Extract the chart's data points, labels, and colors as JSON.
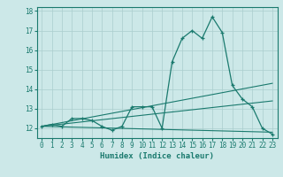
{
  "x": [
    0,
    1,
    2,
    3,
    4,
    5,
    6,
    7,
    8,
    9,
    10,
    11,
    12,
    13,
    14,
    15,
    16,
    17,
    18,
    19,
    20,
    21,
    22,
    23
  ],
  "main_line": [
    12.1,
    12.2,
    12.1,
    12.5,
    12.5,
    12.4,
    12.1,
    11.9,
    12.1,
    13.1,
    13.1,
    13.1,
    12.0,
    15.4,
    16.6,
    17.0,
    16.6,
    17.7,
    16.9,
    14.2,
    13.5,
    13.1,
    12.0,
    11.7
  ],
  "trend1_x": [
    0,
    23
  ],
  "trend1_y": [
    12.1,
    14.3
  ],
  "trend2_x": [
    0,
    23
  ],
  "trend2_y": [
    12.1,
    13.4
  ],
  "trend3_x": [
    0,
    23
  ],
  "trend3_y": [
    12.1,
    11.8
  ],
  "line_color": "#1a7a6e",
  "bg_color": "#cce8e8",
  "grid_color": "#aacece",
  "xlabel": "Humidex (Indice chaleur)",
  "ylim": [
    11.5,
    18.2
  ],
  "xlim": [
    -0.5,
    23.5
  ],
  "yticks": [
    12,
    13,
    14,
    15,
    16,
    17,
    18
  ],
  "xticks": [
    0,
    1,
    2,
    3,
    4,
    5,
    6,
    7,
    8,
    9,
    10,
    11,
    12,
    13,
    14,
    15,
    16,
    17,
    18,
    19,
    20,
    21,
    22,
    23
  ],
  "tick_fontsize": 5.5,
  "xlabel_fontsize": 6.5
}
